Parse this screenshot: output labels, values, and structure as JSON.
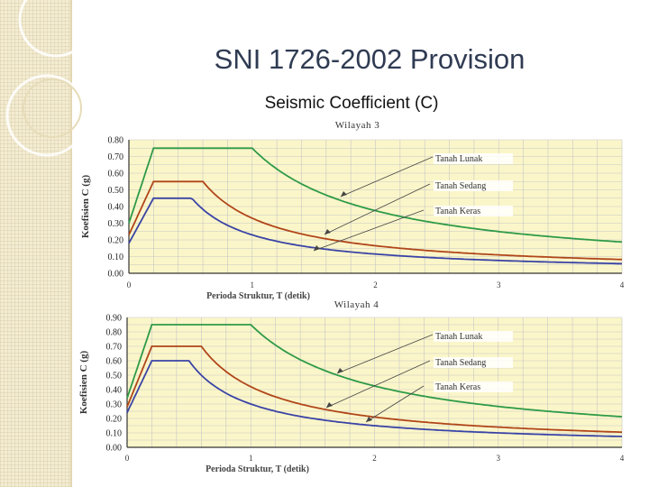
{
  "slide": {
    "title": "SNI 1726-2002 Provision",
    "subtitle": "Seismic Coefficient (C)"
  },
  "colors": {
    "plot_bg": "#fbf6c9",
    "grid": "#c6c6c6",
    "axis": "#333333",
    "lunak": "#2e9a48",
    "sedang": "#b0461a",
    "keras": "#3a43a6"
  },
  "chart_data": [
    {
      "type": "line",
      "title": "Wilayah 3",
      "xlabel": "Perioda Struktur, T  (detik)",
      "ylabel": "Koefisien C (g)",
      "xlim": [
        0,
        4
      ],
      "ylim": [
        0,
        0.8
      ],
      "x_ticks": [
        "0",
        "1",
        "2",
        "3",
        "4"
      ],
      "y_ticks": [
        "0.00",
        "0.10",
        "0.20",
        "0.30",
        "0.40",
        "0.50",
        "0.60",
        "0.70",
        "0.80"
      ],
      "grid": true,
      "series": [
        {
          "name": "Tanah Lunak",
          "color_key": "lunak",
          "start": 0.3,
          "plateau": 0.75,
          "t0": 0.2,
          "tc": 1.0,
          "ar": 0.75
        },
        {
          "name": "Tanah Sedang",
          "color_key": "sedang",
          "start": 0.23,
          "plateau": 0.55,
          "t0": 0.2,
          "tc": 0.6,
          "ar": 0.33
        },
        {
          "name": "Tanah Keras",
          "color_key": "keras",
          "start": 0.18,
          "plateau": 0.45,
          "t0": 0.2,
          "tc": 0.5,
          "ar": 0.23
        }
      ],
      "annotations": [
        "Tanah Lunak",
        "Tanah Sedang",
        "Tanah Keras"
      ]
    },
    {
      "type": "line",
      "title": "Wilayah 4",
      "xlabel": "Perioda Struktur, T  (detik)",
      "ylabel": "Koefisien C (g)",
      "xlim": [
        0,
        4
      ],
      "ylim": [
        0,
        0.9
      ],
      "x_ticks": [
        "0",
        "1",
        "2",
        "3",
        "4"
      ],
      "y_ticks": [
        "0.00",
        "0.10",
        "0.20",
        "0.30",
        "0.40",
        "0.50",
        "0.60",
        "0.70",
        "0.80",
        "0.90"
      ],
      "grid": true,
      "series": [
        {
          "name": "Tanah Lunak",
          "color_key": "lunak",
          "start": 0.34,
          "plateau": 0.85,
          "t0": 0.2,
          "tc": 1.0,
          "ar": 0.85
        },
        {
          "name": "Tanah Sedang",
          "color_key": "sedang",
          "start": 0.28,
          "plateau": 0.7,
          "t0": 0.2,
          "tc": 0.6,
          "ar": 0.42
        },
        {
          "name": "Tanah Keras",
          "color_key": "keras",
          "start": 0.24,
          "plateau": 0.6,
          "t0": 0.2,
          "tc": 0.5,
          "ar": 0.3
        }
      ],
      "annotations": [
        "Tanah Lunak",
        "Tanah Sedang",
        "Tanah Keras"
      ]
    }
  ]
}
